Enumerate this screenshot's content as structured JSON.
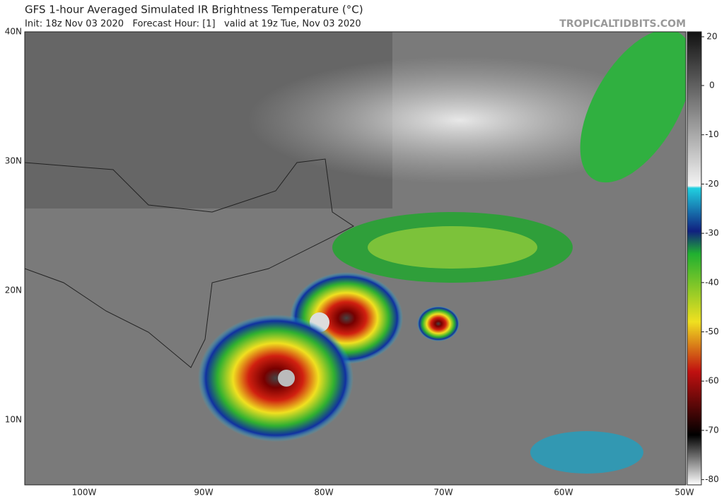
{
  "header": {
    "title": "GFS 1-hour Averaged Simulated IR Brightness Temperature (°C)",
    "subtitle": "Init: 18z Nov 03 2020   Forecast Hour: [1]   valid at 19z Tue, Nov 03 2020",
    "watermark": "TROPICALTIDBITS.COM"
  },
  "map": {
    "lat_labels": [
      "40N",
      "30N",
      "20N",
      "10N"
    ],
    "lon_labels": [
      "100W",
      "90W",
      "80W",
      "70W",
      "60W",
      "50W"
    ]
  },
  "colorbar": {
    "ticks": [
      20,
      0,
      -10,
      -20,
      -30,
      -40,
      -50,
      -60,
      -70,
      -80
    ]
  }
}
